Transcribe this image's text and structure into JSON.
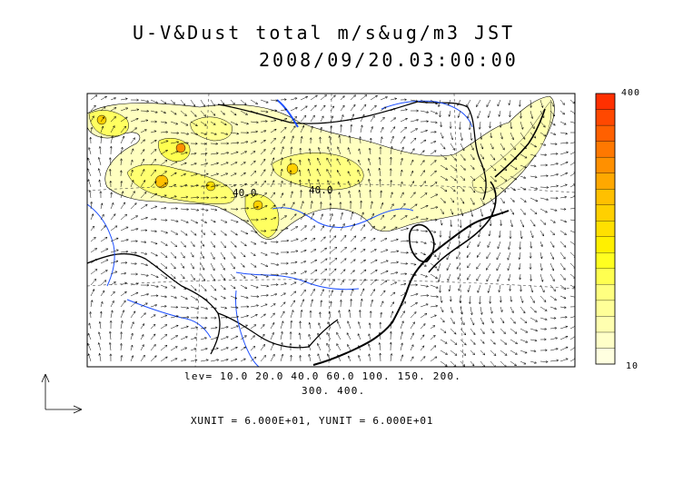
{
  "title": {
    "line1": "U-V&Dust total m/s&ug/m3 JST",
    "line2": "2008/09/20.03:00:00"
  },
  "levels": {
    "line1": "lev= 10.0 20.0 40.0 60.0 100. 150. 200.",
    "line2": "300. 400.",
    "values": [
      10,
      20,
      40,
      60,
      100,
      150,
      200,
      300,
      400
    ]
  },
  "units_text": "XUNIT = 6.000E+01, YUNIT = 6.000E+01",
  "colorbar": {
    "max_label": "400",
    "min_label": "10",
    "colors": [
      "#ffffe0",
      "#ffffc8",
      "#ffffb0",
      "#ffff98",
      "#ffff80",
      "#ffff50",
      "#ffff20",
      "#fff000",
      "#ffe000",
      "#ffd000",
      "#ffc000",
      "#ffa800",
      "#ff9000",
      "#ff7800",
      "#ff6000",
      "#ff4800",
      "#ff3000"
    ]
  },
  "contour_labels": [
    "40.0",
    "40.0"
  ],
  "map_colors": {
    "rivers": "#1e50ff",
    "coast": "#000000",
    "dust_light": "#ffffc0",
    "dust_mid": "#ffff60",
    "dust_high": "#ff8000"
  }
}
